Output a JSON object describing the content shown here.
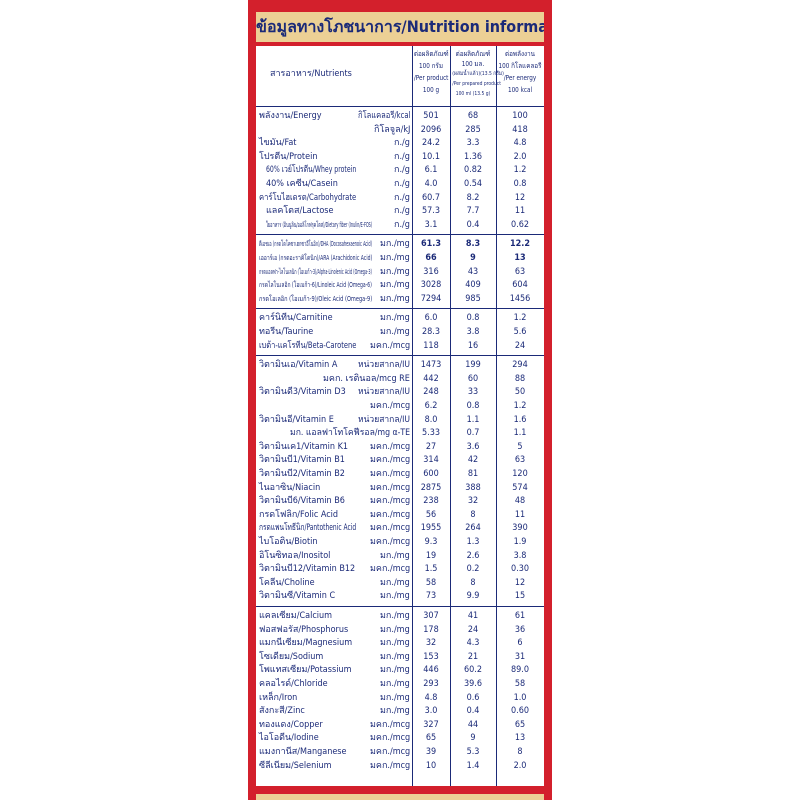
{
  "header": {
    "title": "ข้อมูลทางโภชนาการ/Nutrition information"
  },
  "table": {
    "columns": {
      "nutrient": "สารอาหาร/Nutrients",
      "per_100g": [
        "ต่อผลิตภัณฑ์",
        "100 กรัม",
        "/Per product",
        "100 g"
      ],
      "per_100ml": [
        "ต่อผลิตภัณฑ์",
        "100 มล.",
        "(ผสมน้ำแล้ว)(13.5 กรัม)",
        "/Per prepared product",
        "100 ml (13.5 g)"
      ],
      "per_100kcal": [
        "ต่อพลังงาน",
        "100 กิโลแคลอรี",
        "/Per energy",
        "100 kcal"
      ]
    },
    "groups": [
      {
        "rows": [
          {
            "name": "พลังงาน/Energy",
            "unit": "กิโลแคลอรี/kcal",
            "values": [
              "501",
              "68",
              "100"
            ]
          },
          {
            "unit": "กิโลจูล/kJ",
            "values": [
              "2096",
              "285",
              "418"
            ]
          },
          {
            "name": "ไขมัน/Fat",
            "unit": "ก./g",
            "values": [
              "24.2",
              "3.3",
              "4.8"
            ]
          },
          {
            "name": "โปรตีน/Protein",
            "unit": "ก./g",
            "values": [
              "10.1",
              "1.36",
              "2.0"
            ]
          },
          {
            "name": "60% เวย์โปรตีน/Whey protein",
            "unit": "ก./g",
            "values": [
              "6.1",
              "0.82",
              "1.2"
            ]
          },
          {
            "name": "40% เคซีน/Casein",
            "unit": "ก./g",
            "values": [
              "4.0",
              "0.54",
              "0.8"
            ]
          },
          {
            "name": "คาร์โบไฮเดรต/Carbohydrate",
            "unit": "ก./g",
            "values": [
              "60.7",
              "8.2",
              "12"
            ]
          },
          {
            "name": "แลคโตส/Lactose",
            "unit": "ก./g",
            "values": [
              "57.3",
              "7.7",
              "11"
            ]
          },
          {
            "name": "ใยอาหาร (อินนูลิน/ออลิโกฟรุคโตส)/Dietary fiber (Inulin/E-FOS)",
            "unit": "ก./g",
            "values": [
              "3.1",
              "0.4",
              "0.62"
            ]
          }
        ]
      },
      {
        "rows": [
          {
            "name": "ดีเอชเอ (กรดโดโคซาเฮกซาอีโนอิก)/DHA (Docosahexaenoic Acid)",
            "unit": "มก./mg",
            "values": [
              "61.3",
              "8.3",
              "12.2"
            ],
            "bold": true
          },
          {
            "name": "เออาร์เอ (กรดอะราคิโดนิก)/ARA (Arachidonic Acid)",
            "unit": "มก./mg",
            "values": [
              "66",
              "9",
              "13"
            ],
            "bold": true
          },
          {
            "name": "กรดแอลฟา-ไลโนเลนิก (โอเมก้า-3)/Alpha-Linolenic Acid (Omega-3)",
            "unit": "มก./mg",
            "values": [
              "316",
              "43",
              "63"
            ]
          },
          {
            "name": "กรดไลโนเลอิก (โอเมก้า-6)/Linoleic Acid (Omega-6)",
            "unit": "มก./mg",
            "values": [
              "3028",
              "409",
              "604"
            ]
          },
          {
            "name": "กรดโอเลอิก (โอเมก้า-9)/Oleic Acid (Omega-9)",
            "unit": "มก./mg",
            "values": [
              "7294",
              "985",
              "1456"
            ]
          }
        ]
      },
      {
        "rows": [
          {
            "name": "คาร์นิทีน/Carnitine",
            "unit": "มก./mg",
            "values": [
              "6.0",
              "0.8",
              "1.2"
            ]
          },
          {
            "name": "ทอรีน/Taurine",
            "unit": "มก./mg",
            "values": [
              "28.3",
              "3.8",
              "5.6"
            ]
          },
          {
            "name": "เบต้า-แคโรทีน/Beta-Carotene",
            "unit": "มคก./mcg",
            "values": [
              "118",
              "16",
              "24"
            ]
          }
        ]
      },
      {
        "rows": [
          {
            "name": "วิตามินเอ/Vitamin A",
            "unit": "หน่วยสากล/IU",
            "values": [
              "1473",
              "199",
              "294"
            ]
          },
          {
            "unit": "มคก. เรตินอล/mcg RE",
            "values": [
              "442",
              "60",
              "88"
            ]
          },
          {
            "name": "วิตามินดี3/Vitamin D3",
            "unit": "หน่วยสากล/IU",
            "values": [
              "248",
              "33",
              "50"
            ]
          },
          {
            "unit": "มคก./mcg",
            "values": [
              "6.2",
              "0.8",
              "1.2"
            ]
          },
          {
            "name": "วิตามินอี/Vitamin E",
            "unit": "หน่วยสากล/IU",
            "values": [
              "8.0",
              "1.1",
              "1.6"
            ]
          },
          {
            "unit": "มก. แอลฟาโทโคฟีรอล/mg α-TE",
            "values": [
              "5.33",
              "0.7",
              "1.1"
            ]
          },
          {
            "name": "วิตามินเค1/Vitamin K1",
            "unit": "มคก./mcg",
            "values": [
              "27",
              "3.6",
              "5"
            ]
          },
          {
            "name": "วิตามินบี1/Vitamin B1",
            "unit": "มคก./mcg",
            "values": [
              "314",
              "42",
              "63"
            ]
          },
          {
            "name": "วิตามินบี2/Vitamin B2",
            "unit": "มคก./mcg",
            "values": [
              "600",
              "81",
              "120"
            ]
          },
          {
            "name": "ไนอาซิน/Niacin",
            "unit": "มคก./mcg",
            "values": [
              "2875",
              "388",
              "574"
            ]
          },
          {
            "name": "วิตามินบี6/Vitamin B6",
            "unit": "มคก./mcg",
            "values": [
              "238",
              "32",
              "48"
            ]
          },
          {
            "name": "กรดโฟลิก/Folic Acid",
            "unit": "มคก./mcg",
            "values": [
              "56",
              "8",
              "11"
            ]
          },
          {
            "name": "กรดแพนโทธีนิก/Pantothenic Acid",
            "unit": "มคก./mcg",
            "values": [
              "1955",
              "264",
              "390"
            ]
          },
          {
            "name": "ไบโอติน/Biotin",
            "unit": "มคก./mcg",
            "values": [
              "9.3",
              "1.3",
              "1.9"
            ]
          },
          {
            "name": "อิโนซิทอล/Inositol",
            "unit": "มก./mg",
            "values": [
              "19",
              "2.6",
              "3.8"
            ]
          },
          {
            "name": "วิตามินบี12/Vitamin B12",
            "unit": "มคก./mcg",
            "values": [
              "1.5",
              "0.2",
              "0.30"
            ]
          },
          {
            "name": "โคลีน/Choline",
            "unit": "มก./mg",
            "values": [
              "58",
              "8",
              "12"
            ]
          },
          {
            "name": "วิตามินซี/Vitamin C",
            "unit": "มก./mg",
            "values": [
              "73",
              "9.9",
              "15"
            ]
          }
        ]
      },
      {
        "rows": [
          {
            "name": "แคลเซียม/Calcium",
            "unit": "มก./mg",
            "values": [
              "307",
              "41",
              "61"
            ]
          },
          {
            "name": "ฟอสฟอรัส/Phosphorus",
            "unit": "มก./mg",
            "values": [
              "178",
              "24",
              "36"
            ]
          },
          {
            "name": "แมกนีเซียม/Magnesium",
            "unit": "มก./mg",
            "values": [
              "32",
              "4.3",
              "6"
            ]
          },
          {
            "name": "โซเดียม/Sodium",
            "unit": "มก./mg",
            "values": [
              "153",
              "21",
              "31"
            ]
          },
          {
            "name": "โพแทสเซียม/Potassium",
            "unit": "มก./mg",
            "values": [
              "446",
              "60.2",
              "89.0"
            ]
          },
          {
            "name": "คลอไรด์/Chloride",
            "unit": "มก./mg",
            "values": [
              "293",
              "39.6",
              "58"
            ]
          },
          {
            "name": "เหล็ก/Iron",
            "unit": "มก./mg",
            "values": [
              "4.8",
              "0.6",
              "1.0"
            ]
          },
          {
            "name": "สังกะสี/Zinc",
            "unit": "มก./mg",
            "values": [
              "3.0",
              "0.4",
              "0.60"
            ]
          },
          {
            "name": "ทองแดง/Copper",
            "unit": "มคก./mcg",
            "values": [
              "327",
              "44",
              "65"
            ]
          },
          {
            "name": "ไอโอดีน/Iodine",
            "unit": "มคก./mcg",
            "values": [
              "65",
              "9",
              "13"
            ]
          },
          {
            "name": "แมงกานีส/Manganese",
            "unit": "มคก./mcg",
            "values": [
              "39",
              "5.3",
              "8"
            ]
          },
          {
            "name": "ซีลีเนียม/Selenium",
            "unit": "มคก./mcg",
            "values": [
              "10",
              "1.4",
              "2.0"
            ]
          }
        ]
      }
    ]
  }
}
